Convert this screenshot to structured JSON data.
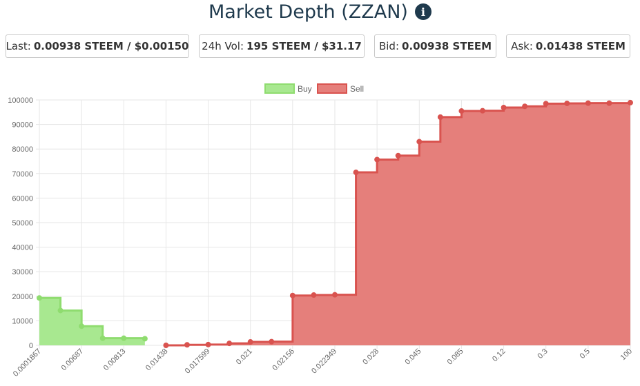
{
  "header": {
    "title": "Market Depth (ZZAN)",
    "info_icon": "info-icon"
  },
  "stats": {
    "last_label": "Last:",
    "last_value": "0.00938 STEEM / $0.00150",
    "vol_label": "24h Vol:",
    "vol_value": "195 STEEM / $31.17",
    "bid_label": "Bid:",
    "bid_value": "0.00938 STEEM",
    "ask_label": "Ask:",
    "ask_value": "0.01438 STEEM"
  },
  "colors": {
    "buy_fill": "#a8e890",
    "buy_line": "#8fdc6f",
    "sell_fill": "#e57f7b",
    "sell_line": "#d9534f",
    "grid": "#e6e6e6",
    "title": "#1f3a4d"
  },
  "chart_data": {
    "type": "area",
    "categories": [
      "0.0001867",
      "",
      "0.00687",
      "",
      "0.00813",
      "",
      "0.01438",
      "",
      "0.017599",
      "",
      "0.021",
      "",
      "0.02156",
      "",
      "0.022349",
      "",
      "0.028",
      "",
      "0.045",
      "",
      "0.085",
      "",
      "0.12",
      "",
      "0.3",
      "",
      "0.5",
      "",
      "100"
    ],
    "ylim": [
      0,
      100000
    ],
    "yticks": [
      0,
      10000,
      20000,
      30000,
      40000,
      50000,
      60000,
      70000,
      80000,
      90000,
      100000
    ],
    "legend_position": "top-center",
    "grid": true,
    "series": [
      {
        "name": "Buy",
        "points": [
          {
            "i": 0,
            "y": 19300
          },
          {
            "i": 1,
            "y": 14200
          },
          {
            "i": 2,
            "y": 7800
          },
          {
            "i": 3,
            "y": 2900
          },
          {
            "i": 4,
            "y": 2900
          },
          {
            "i": 5,
            "y": 2700
          }
        ]
      },
      {
        "name": "Sell",
        "points": [
          {
            "i": 6,
            "y": 0
          },
          {
            "i": 7,
            "y": 200
          },
          {
            "i": 8,
            "y": 300
          },
          {
            "i": 9,
            "y": 800
          },
          {
            "i": 10,
            "y": 1400
          },
          {
            "i": 11,
            "y": 1500
          },
          {
            "i": 12,
            "y": 20300
          },
          {
            "i": 13,
            "y": 20500
          },
          {
            "i": 14,
            "y": 20600
          },
          {
            "i": 15,
            "y": 70500
          },
          {
            "i": 16,
            "y": 75700
          },
          {
            "i": 17,
            "y": 77300
          },
          {
            "i": 18,
            "y": 83000
          },
          {
            "i": 19,
            "y": 93000
          },
          {
            "i": 20,
            "y": 95500
          },
          {
            "i": 21,
            "y": 95600
          },
          {
            "i": 22,
            "y": 96900
          },
          {
            "i": 23,
            "y": 97400
          },
          {
            "i": 24,
            "y": 98500
          },
          {
            "i": 25,
            "y": 98600
          },
          {
            "i": 26,
            "y": 98700
          },
          {
            "i": 27,
            "y": 98700
          },
          {
            "i": 28,
            "y": 98900
          }
        ]
      }
    ]
  }
}
